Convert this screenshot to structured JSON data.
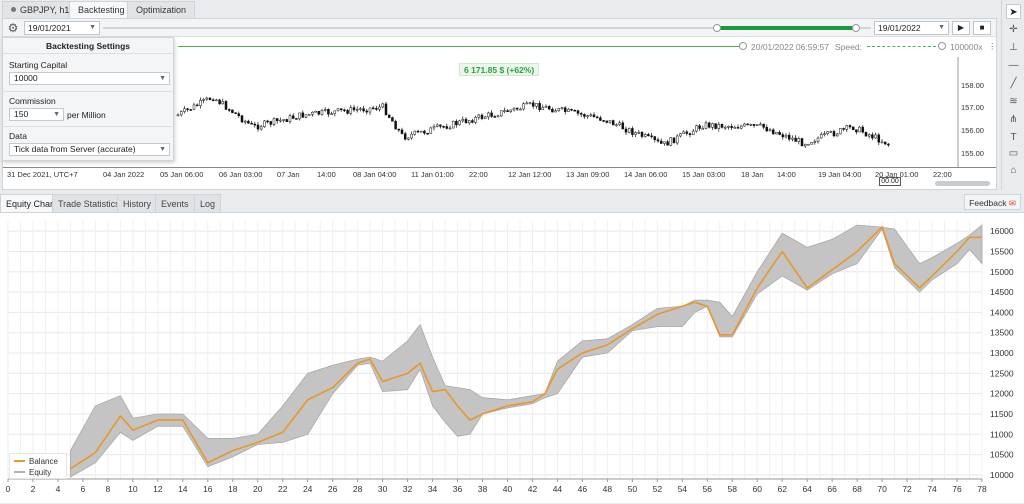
{
  "tabs": [
    {
      "label": "GBPJPY, h1"
    },
    {
      "label": "Backtesting"
    },
    {
      "label": "Optimization"
    }
  ],
  "controls": {
    "start_date": "19/01/2021",
    "end_date": "19/01/2022",
    "current_time": "20/01/2022 06:59:57",
    "speed_label": "Speed:",
    "speed_value": "100000x",
    "range_fill_start": 0.8,
    "range_fill_end": 0.98,
    "speed_level": 0.95
  },
  "settings": {
    "title": "Backtesting Settings",
    "starting_capital_label": "Starting Capital",
    "starting_capital_value": "10000",
    "commission_label": "Commission",
    "commission_value": "150",
    "commission_unit": "per Million",
    "data_label": "Data",
    "data_value": "Tick data from Server (accurate)"
  },
  "price_chart": {
    "profit_badge": "6 171.85 $ (+62%)",
    "price_labels": [
      "158.00",
      "157.00",
      "156.00",
      "155.00"
    ],
    "time_labels": [
      "31 Dec 2021, UTC+7",
      "04 Jan 2022",
      "05 Jan 06:00",
      "06 Jan 03:00",
      "07 Jan",
      "14:00",
      "08 Jan 04:00",
      "11 Jan 01:00",
      "22:00",
      "12 Jan 12:00",
      "13 Jan 09:00",
      "14 Jan 06:00",
      "15 Jan 03:00",
      "18 Jan",
      "14:00",
      "19 Jan 04:00",
      "20 Jan 01:00",
      "22:00"
    ],
    "cursor_tag": "00.00"
  },
  "lower_tabs": [
    {
      "label": "Equity Chart"
    },
    {
      "label": "Trade Statistics"
    },
    {
      "label": "History"
    },
    {
      "label": "Events"
    },
    {
      "label": "Log"
    }
  ],
  "feedback_label": "Feedback",
  "chart_data": {
    "type": "line",
    "x_ticks": [
      0,
      2,
      4,
      6,
      8,
      10,
      12,
      14,
      16,
      18,
      20,
      22,
      24,
      26,
      28,
      30,
      32,
      34,
      36,
      38,
      40,
      42,
      44,
      46,
      48,
      50,
      52,
      54,
      56,
      58,
      60,
      62,
      64,
      66,
      68,
      70,
      72,
      74,
      76,
      78
    ],
    "y_ticks": [
      10000,
      10500,
      11000,
      11500,
      12000,
      12500,
      13000,
      13500,
      14000,
      14500,
      15000,
      15500,
      16000
    ],
    "xlim": [
      0,
      78
    ],
    "ylim": [
      9900,
      16250
    ],
    "grid": true,
    "legend_position": "bottom-left",
    "series": [
      {
        "name": "Balance",
        "color": "#e8972b",
        "x": [
          5,
          7,
          9,
          10,
          12,
          14,
          16,
          18,
          20,
          22,
          24,
          26,
          28,
          29,
          30,
          32,
          33,
          34,
          35,
          36,
          37,
          38,
          40,
          42,
          43,
          44,
          46,
          48,
          50,
          52,
          54,
          55,
          56,
          57,
          58,
          60,
          62,
          64,
          66,
          68,
          70,
          71,
          73,
          74,
          76,
          77,
          78
        ],
        "y": [
          10150,
          10550,
          11450,
          11100,
          11350,
          11350,
          10300,
          10600,
          10800,
          11050,
          11850,
          12150,
          12750,
          12850,
          12300,
          12500,
          12750,
          12050,
          12100,
          11700,
          11350,
          11500,
          11700,
          11800,
          12000,
          12600,
          13000,
          13200,
          13600,
          13950,
          14150,
          14250,
          14150,
          13450,
          13450,
          14600,
          15500,
          14600,
          15050,
          15500,
          16100,
          15200,
          14600,
          14900,
          15500,
          15850,
          15850
        ]
      },
      {
        "name": "Equity",
        "color": "#b3b3b3",
        "upper": [
          10600,
          11700,
          11950,
          11400,
          11500,
          11500,
          10900,
          10900,
          11000,
          11700,
          12500,
          12700,
          12850,
          12900,
          12800,
          13300,
          13700,
          12900,
          12200,
          12150,
          12100,
          11900,
          11850,
          11950,
          12000,
          12800,
          13300,
          13350,
          13700,
          14100,
          14150,
          14300,
          14300,
          14250,
          13900,
          15000,
          15950,
          15600,
          15800,
          16150,
          16100,
          16050,
          15200,
          15350,
          15700,
          15900,
          16150
        ],
        "lower": [
          9950,
          10300,
          11050,
          10850,
          11200,
          11200,
          10200,
          10450,
          10750,
          10800,
          11000,
          12000,
          12700,
          12750,
          12050,
          12100,
          12600,
          11700,
          11300,
          10950,
          11000,
          11500,
          11650,
          11750,
          11900,
          12000,
          12900,
          13000,
          13550,
          13650,
          13650,
          14000,
          14150,
          13400,
          13400,
          14450,
          14900,
          14550,
          14950,
          15200,
          16050,
          15100,
          14500,
          14800,
          15200,
          15550,
          15200
        ]
      }
    ],
    "x_source": [
      5,
      7,
      9,
      10,
      12,
      14,
      16,
      18,
      20,
      22,
      24,
      26,
      28,
      29,
      30,
      32,
      33,
      34,
      35,
      36,
      37,
      38,
      40,
      42,
      43,
      44,
      46,
      48,
      50,
      52,
      54,
      55,
      56,
      57,
      58,
      60,
      62,
      64,
      66,
      68,
      70,
      71,
      73,
      74,
      76,
      77,
      78
    ]
  },
  "legend": {
    "balance_label": "Balance",
    "equity_label": "Equity"
  }
}
